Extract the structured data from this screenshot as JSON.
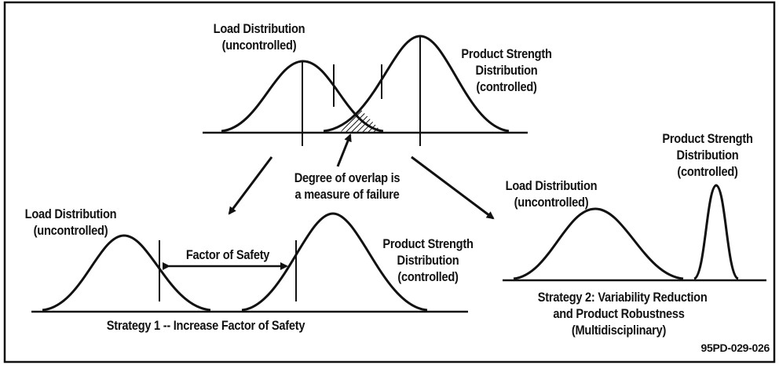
{
  "top_panel": {
    "load_label": [
      "Load Distribution",
      "(uncontrolled)"
    ],
    "strength_label": [
      "Product Strength",
      "Distribution",
      "(controlled)"
    ],
    "overlap_note": [
      "Degree of overlap is",
      "a measure of failure"
    ]
  },
  "strategy1": {
    "load_label": [
      "Load Distribution",
      "(uncontrolled)"
    ],
    "strength_label": [
      "Product Strength",
      "Distribution",
      "(controlled)"
    ],
    "factor_label": "Factor of Safety",
    "caption": "Strategy 1 -- Increase Factor of Safety"
  },
  "strategy2": {
    "load_label": [
      "Load Distribution",
      "(uncontrolled)"
    ],
    "strength_label": [
      "Product Strength",
      "Distribution",
      "(controlled)"
    ],
    "caption": [
      "Strategy 2: Variability Reduction",
      "and Product Robustness",
      "(Multidisciplinary)"
    ]
  },
  "figure_code": "95PD-029-026",
  "colors": {
    "ink": "#111111",
    "background": "#ffffff"
  }
}
